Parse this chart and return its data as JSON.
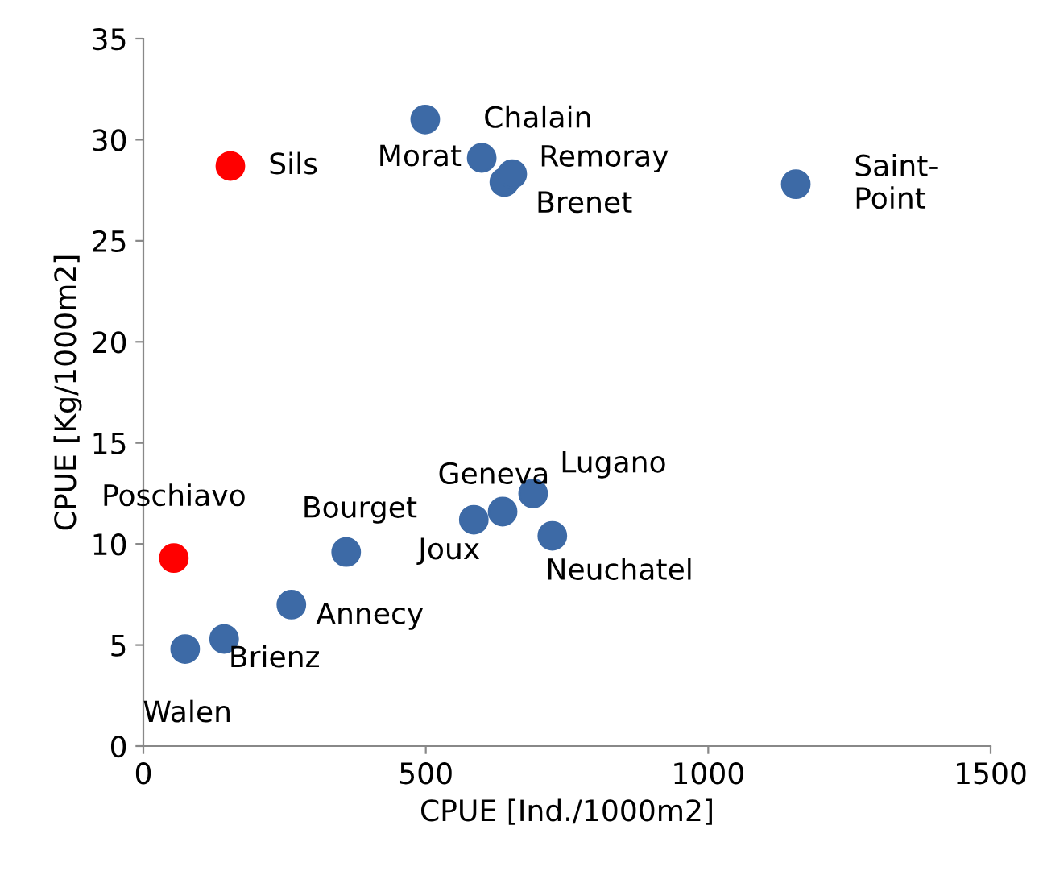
{
  "chart_data": {
    "type": "scatter",
    "xlabel": "CPUE [Ind./1000m2]",
    "ylabel": "CPUE [Kg/1000m2]",
    "xlim": [
      0,
      1500
    ],
    "xticks": [
      0,
      500,
      1000,
      1500
    ],
    "ylim": [
      0,
      35
    ],
    "yticks": [
      0,
      5,
      10,
      15,
      20,
      25,
      30,
      35
    ],
    "grid": false,
    "legend": false,
    "marker": "circle",
    "series": [
      {
        "color": "#3d6aa6",
        "x": [
          499,
          599,
          639,
          653,
          1155,
          690,
          636,
          585,
          724,
          359,
          262,
          143,
          74
        ],
        "values": [
          31.0,
          29.1,
          27.9,
          28.3,
          27.8,
          12.5,
          11.6,
          11.2,
          10.4,
          9.6,
          7.0,
          5.3,
          4.8
        ]
      },
      {
        "color": "#ff0000",
        "x": [
          154,
          54
        ],
        "values": [
          28.7,
          9.3
        ]
      }
    ],
    "annotations": [
      {
        "text": "Chalain",
        "x": 499,
        "y": 31.0
      },
      {
        "text": "Morat",
        "x": 599,
        "y": 29.1
      },
      {
        "text": "Brenet",
        "x": 639,
        "y": 27.9
      },
      {
        "text": "Remoray",
        "x": 653,
        "y": 28.3
      },
      {
        "text": "Saint-\nPoint",
        "x": 1155,
        "y": 27.8
      },
      {
        "text": "Lugano",
        "x": 690,
        "y": 12.5
      },
      {
        "text": "Geneva",
        "x": 636,
        "y": 11.6
      },
      {
        "text": "Joux",
        "x": 585,
        "y": 11.2
      },
      {
        "text": "Neuchatel",
        "x": 724,
        "y": 10.4
      },
      {
        "text": "Bourget",
        "x": 359,
        "y": 9.6
      },
      {
        "text": "Annecy",
        "x": 262,
        "y": 7.0
      },
      {
        "text": "Brienz",
        "x": 143,
        "y": 5.3
      },
      {
        "text": "Walen",
        "x": 74,
        "y": 4.8
      },
      {
        "text": "Sils",
        "x": 154,
        "y": 28.7
      },
      {
        "text": "Poschiavo",
        "x": 54,
        "y": 9.3
      }
    ]
  }
}
